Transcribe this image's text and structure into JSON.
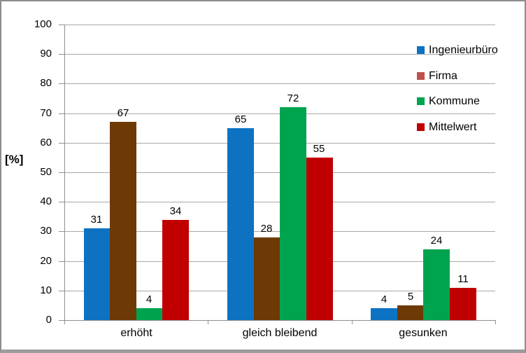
{
  "chart_data": {
    "type": "bar",
    "title": "",
    "categories": [
      "erhöht",
      "gleich bleibend",
      "gesunken"
    ],
    "series": [
      {
        "name": "Ingenieurbüro",
        "bar_color": "#0d72c2",
        "legend_color": "#0d72c2",
        "values": [
          31,
          65,
          4
        ]
      },
      {
        "name": "Firma",
        "bar_color": "#6d3a06",
        "legend_color": "#c0504d",
        "values": [
          67,
          28,
          5
        ]
      },
      {
        "name": "Kommune",
        "bar_color": "#00a44f",
        "legend_color": "#00a44f",
        "values": [
          4,
          72,
          24
        ]
      },
      {
        "name": "Mittelwert",
        "bar_color": "#c00000",
        "legend_color": "#c00000",
        "values": [
          34,
          55,
          11
        ]
      }
    ],
    "ylabel": "[%]",
    "xlabel": "",
    "ylim": [
      0,
      100
    ],
    "ytick_step": 10,
    "yticks": [
      "0",
      "10",
      "20",
      "30",
      "40",
      "50",
      "60",
      "70",
      "80",
      "90",
      "100"
    ],
    "grid": true,
    "legend_position": "right-overlay",
    "data_labels": "outside-end",
    "colors": {
      "gridline": "#a8a8a8",
      "axis": "#8f8f8f",
      "text": "#000000",
      "frame_border": "#8d8d8d",
      "frame_bottom": "#9c9c9c"
    }
  }
}
